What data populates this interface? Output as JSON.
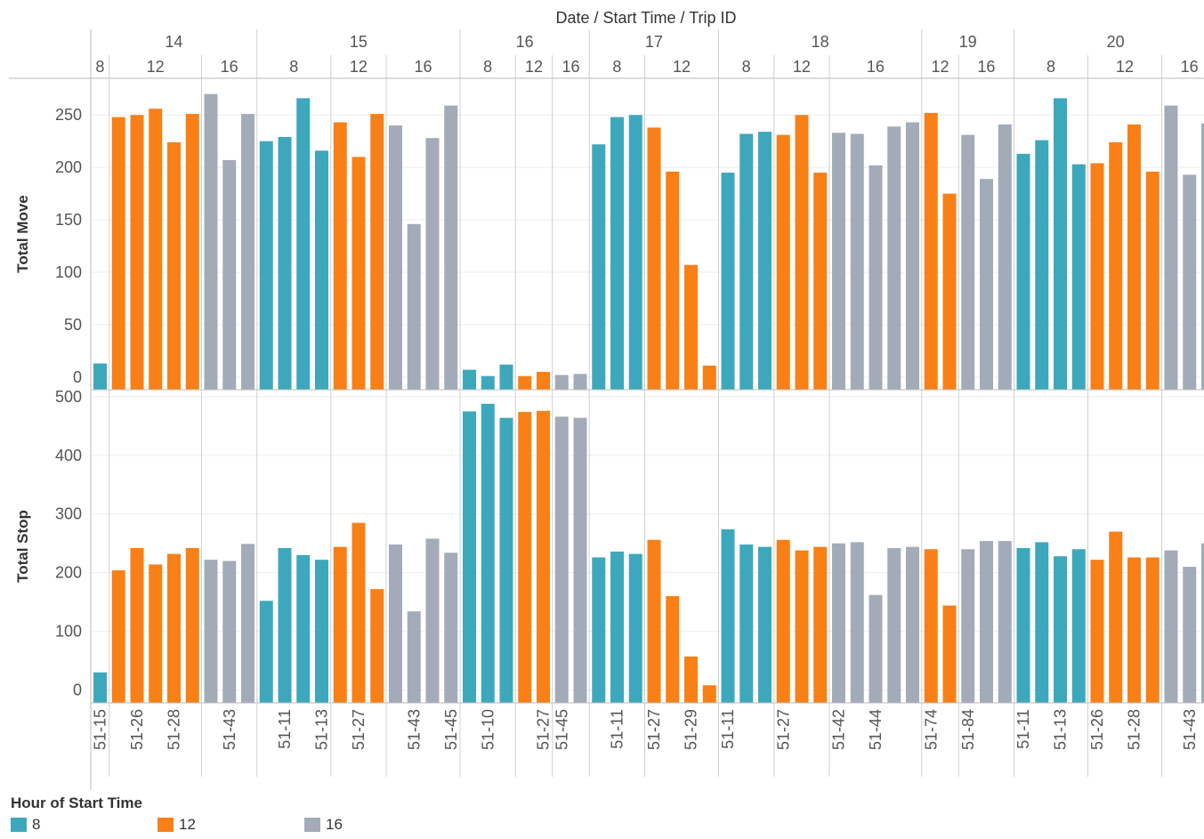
{
  "chart_data": {
    "type": "bar",
    "title": "",
    "header_label": "Date / Start Time / Trip ID",
    "dates": [
      "14",
      "15",
      "16",
      "17",
      "18",
      "19",
      "20"
    ],
    "groups": [
      {
        "date": "14",
        "hour": "8",
        "trips": [
          "51-15"
        ],
        "move": [
          13
        ],
        "stop": [
          30
        ]
      },
      {
        "date": "14",
        "hour": "12",
        "trips": [
          "51-26",
          "51-26",
          "51-28",
          "51-28",
          "51-28"
        ],
        "move": [
          248,
          250,
          256,
          224,
          251
        ],
        "stop": [
          204,
          242,
          214,
          232,
          242
        ]
      },
      {
        "date": "14",
        "hour": "16",
        "trips": [
          "51-43",
          "51-43",
          "51-43"
        ],
        "move": [
          270,
          207,
          251
        ],
        "stop": [
          222,
          220,
          249
        ]
      },
      {
        "date": "15",
        "hour": "8",
        "trips": [
          "51-11",
          "51-11",
          "51-13",
          "51-13"
        ],
        "move": [
          225,
          229,
          266,
          216
        ],
        "stop": [
          152,
          242,
          230,
          222
        ]
      },
      {
        "date": "15",
        "hour": "12",
        "trips": [
          "51-27",
          "51-27",
          "51-27"
        ],
        "move": [
          243,
          210,
          251
        ],
        "stop": [
          244,
          285,
          172
        ]
      },
      {
        "date": "15",
        "hour": "16",
        "trips": [
          "51-43",
          "51-43",
          "51-45",
          "51-45"
        ],
        "move": [
          240,
          146,
          228,
          259
        ],
        "stop": [
          248,
          134,
          258,
          234
        ]
      },
      {
        "date": "16",
        "hour": "8",
        "trips": [
          "51-10",
          "51-10",
          "51-10"
        ],
        "move": [
          7,
          1,
          12
        ],
        "stop": [
          475,
          488,
          464
        ]
      },
      {
        "date": "16",
        "hour": "12",
        "trips": [
          "51-27",
          "51-27"
        ],
        "move": [
          1,
          5
        ],
        "stop": [
          474,
          476
        ]
      },
      {
        "date": "16",
        "hour": "16",
        "trips": [
          "51-45",
          "51-45"
        ],
        "move": [
          2,
          3
        ],
        "stop": [
          466,
          464
        ]
      },
      {
        "date": "17",
        "hour": "8",
        "trips": [
          "51-11",
          "51-11",
          "51-11"
        ],
        "move": [
          222,
          248,
          250
        ],
        "stop": [
          226,
          236,
          232
        ]
      },
      {
        "date": "17",
        "hour": "12",
        "trips": [
          "51-27",
          "51-27",
          "51-27",
          "51-29"
        ],
        "move": [
          238,
          196,
          107,
          11
        ],
        "stop": [
          256,
          160,
          57,
          8
        ]
      },
      {
        "date": "18",
        "hour": "8",
        "trips": [
          "51-11",
          "51-11",
          "51-11"
        ],
        "move": [
          195,
          232,
          234
        ],
        "stop": [
          274,
          248,
          244
        ]
      },
      {
        "date": "18",
        "hour": "12",
        "trips": [
          "51-27",
          "51-27",
          "51-27"
        ],
        "move": [
          231,
          250,
          195
        ],
        "stop": [
          256,
          238,
          244
        ]
      },
      {
        "date": "18",
        "hour": "16",
        "trips": [
          "51-42",
          "51-42",
          "51-44",
          "51-44",
          "51-44"
        ],
        "move": [
          233,
          232,
          202,
          239,
          243
        ],
        "stop": [
          250,
          252,
          162,
          242,
          244
        ]
      },
      {
        "date": "19",
        "hour": "12",
        "trips": [
          "51-74",
          "51-74"
        ],
        "move": [
          252,
          175
        ],
        "stop": [
          240,
          144
        ]
      },
      {
        "date": "19",
        "hour": "16",
        "trips": [
          "51-84",
          "51-84",
          "51-84"
        ],
        "move": [
          231,
          189,
          241
        ],
        "stop": [
          240,
          254,
          254
        ]
      },
      {
        "date": "20",
        "hour": "8",
        "trips": [
          "51-11",
          "51-11",
          "51-13",
          "51-13"
        ],
        "move": [
          213,
          226,
          266,
          203
        ],
        "stop": [
          242,
          252,
          228,
          240
        ]
      },
      {
        "date": "20",
        "hour": "12",
        "trips": [
          "51-26",
          "51-26",
          "51-28",
          "51-28"
        ],
        "move": [
          204,
          224,
          241,
          196
        ],
        "stop": [
          222,
          270,
          226,
          226
        ]
      },
      {
        "date": "20",
        "hour": "16",
        "trips": [
          "51-43",
          "51-43",
          "51-43"
        ],
        "move": [
          259,
          193,
          242
        ],
        "stop": [
          238,
          210,
          250
        ]
      }
    ],
    "trip_tick_labels": [
      {
        "text": "51-15",
        "bar": 0
      },
      {
        "text": "51-26",
        "bar": 2
      },
      {
        "text": "51-28",
        "bar": 4
      },
      {
        "text": "51-43",
        "bar": 7
      },
      {
        "text": "51-11",
        "bar": 10
      },
      {
        "text": "51-13",
        "bar": 12
      },
      {
        "text": "51-27",
        "bar": 14
      },
      {
        "text": "51-43",
        "bar": 17
      },
      {
        "text": "51-45",
        "bar": 19
      },
      {
        "text": "51-10",
        "bar": 21
      },
      {
        "text": "51-27",
        "bar": 24
      },
      {
        "text": "51-45",
        "bar": 25
      },
      {
        "text": "51-11",
        "bar": 28
      },
      {
        "text": "51-27",
        "bar": 30
      },
      {
        "text": "51-29",
        "bar": 32
      },
      {
        "text": "51-11",
        "bar": 34
      },
      {
        "text": "51-27",
        "bar": 37
      },
      {
        "text": "51-42",
        "bar": 40
      },
      {
        "text": "51-44",
        "bar": 42
      },
      {
        "text": "51-74",
        "bar": 45
      },
      {
        "text": "51-84",
        "bar": 47
      },
      {
        "text": "51-11",
        "bar": 50
      },
      {
        "text": "51-13",
        "bar": 52
      },
      {
        "text": "51-26",
        "bar": 54
      },
      {
        "text": "51-28",
        "bar": 56
      },
      {
        "text": "51-43",
        "bar": 59
      }
    ],
    "panels": [
      {
        "key": "move",
        "ylabel": "Total Move",
        "ylim": [
          -12,
          285
        ],
        "ticks": [
          0,
          50,
          100,
          150,
          200,
          250
        ]
      },
      {
        "key": "stop",
        "ylabel": "Total Stop",
        "ylim": [
          -22,
          512
        ],
        "ticks": [
          0,
          100,
          200,
          300,
          400,
          500
        ]
      }
    ],
    "legend": {
      "title": "Hour of Start Time",
      "items": [
        {
          "label": "8",
          "color": "#3DA8BC"
        },
        {
          "label": "12",
          "color": "#F88017"
        },
        {
          "label": "16",
          "color": "#A3ABB8"
        }
      ]
    },
    "colors": {
      "8": "#3DA8BC",
      "12": "#F88017",
      "16": "#A3ABB8",
      "gridline": "#eeeeee",
      "divider": "#d0d0d0",
      "axis": "#bbbbbb",
      "text": "#555555"
    }
  }
}
